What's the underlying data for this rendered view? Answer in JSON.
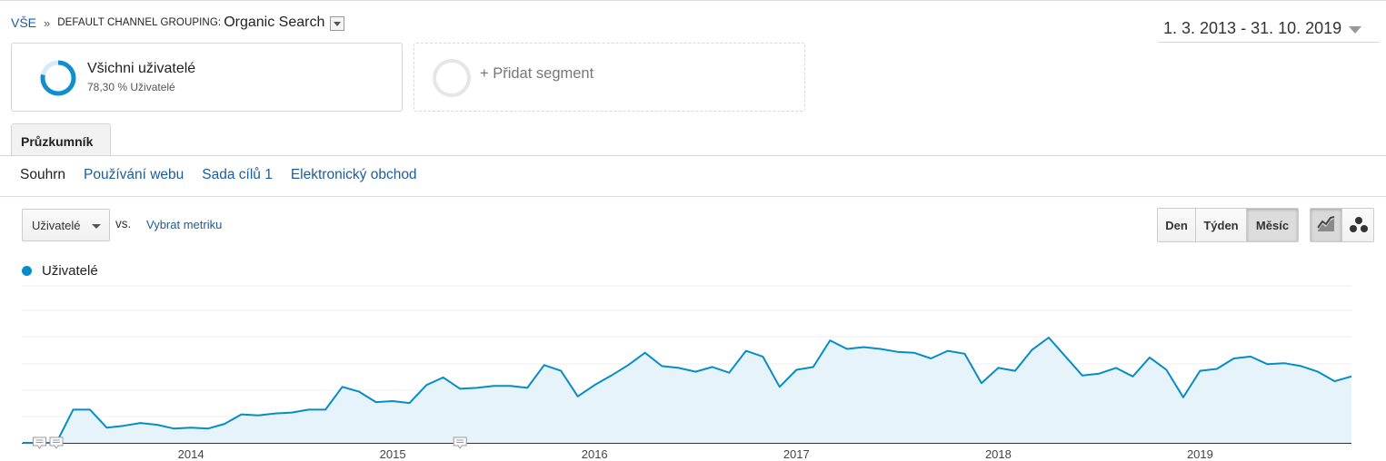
{
  "breadcrumb": {
    "all": "VŠE",
    "separator": "»",
    "dimension": "DEFAULT CHANNEL GROUPING:",
    "value": "Organic Search"
  },
  "date_range": "1. 3. 2013 - 31. 10. 2019",
  "segments": {
    "primary": {
      "title": "Všichni uživatelé",
      "subtitle": "78,30 % Uživatelé"
    },
    "add_label": "+ Přidat segment"
  },
  "tabs": [
    {
      "label": "Průzkumník"
    }
  ],
  "subtabs": [
    {
      "label": "Souhrn"
    },
    {
      "label": "Používání webu"
    },
    {
      "label": "Sada cílů 1"
    },
    {
      "label": "Elektronický obchod"
    }
  ],
  "metric": {
    "selected": "Uživatelé",
    "vs_label": "vs.",
    "select_metric": "Vybrat metriku"
  },
  "period_buttons": [
    {
      "label": "Den"
    },
    {
      "label": "Týden"
    },
    {
      "label": "Měsíc",
      "active": true
    }
  ],
  "view_buttons": [
    {
      "icon": "line-chart-icon",
      "active": true
    },
    {
      "icon": "motion-chart-icon"
    }
  ],
  "legend": {
    "label": "Uživatelé",
    "color": "#058dc7"
  },
  "colors": {
    "link": "#1a5d9c",
    "series": "#058dc7",
    "area": "#e6f3fa",
    "segment_ring": "#0f8fd0",
    "segment_ring_bg": "#d6ebf7"
  },
  "chart_data": {
    "type": "area",
    "start": "2013-03",
    "end": "2019-10",
    "x_tick_labels": [
      "2014",
      "2015",
      "2016",
      "2017",
      "2018",
      "2019"
    ],
    "series": [
      {
        "name": "Uživatelé",
        "values": [
          0,
          0,
          0,
          35,
          35,
          16,
          18,
          21,
          19,
          15,
          16,
          15,
          20,
          30,
          29,
          31,
          32,
          35,
          35,
          59,
          54,
          43,
          44,
          42,
          61,
          69,
          57,
          58,
          60,
          60,
          58,
          82,
          76,
          49,
          61,
          71,
          82,
          95,
          81,
          79,
          75,
          80,
          74,
          97,
          91,
          59,
          77,
          80,
          108,
          99,
          101,
          99,
          96,
          95,
          89,
          97,
          94,
          63,
          79,
          76,
          98,
          111,
          91,
          71,
          73,
          79,
          70,
          90,
          77,
          48,
          76,
          78,
          89,
          91,
          83,
          84,
          81,
          75,
          65,
          70
        ]
      }
    ],
    "annotations_at_index": [
      1,
      2,
      26
    ],
    "grid": true,
    "legend_position": "top-left"
  }
}
